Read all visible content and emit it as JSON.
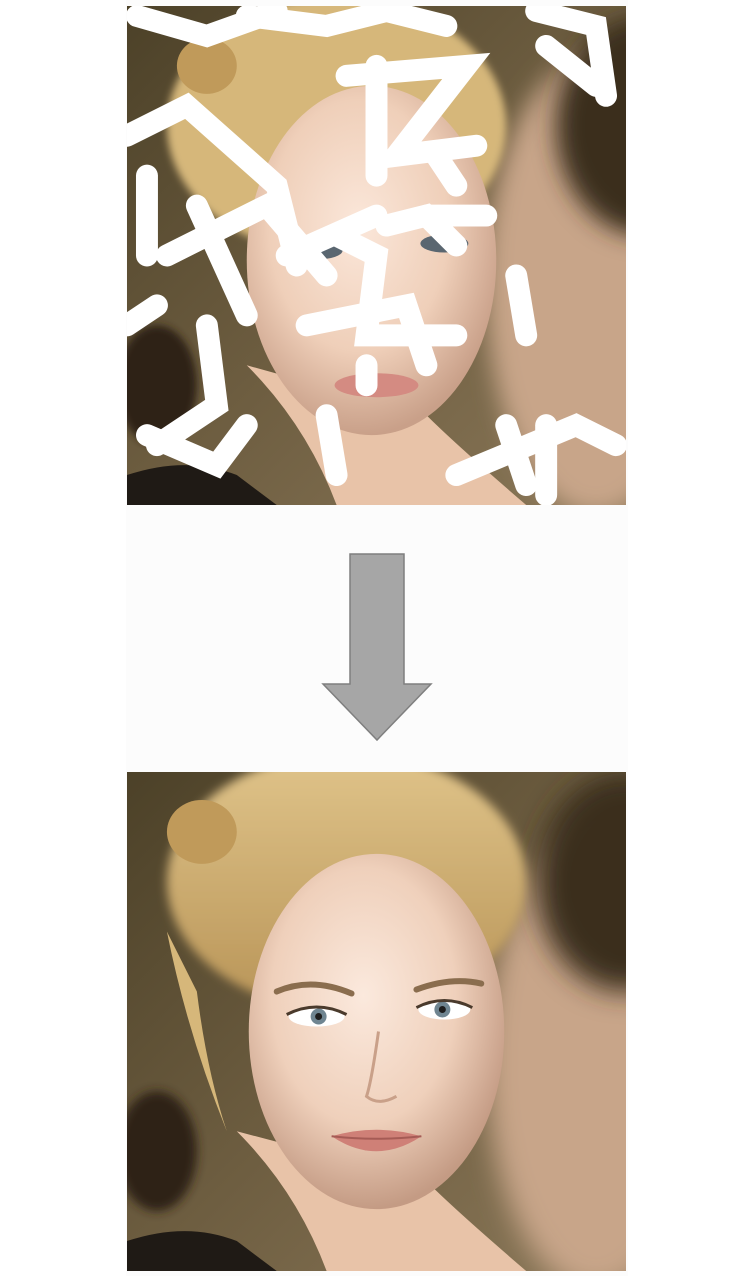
{
  "figure": {
    "input_image": {
      "description_icon": "masked-face-photo",
      "mask_color": "#ffffff"
    },
    "arrow": {
      "icon": "arrow-down-icon",
      "fill_color": "#a6a6a6",
      "stroke_color": "#7f7f7f"
    },
    "output_image": {
      "description_icon": "restored-face-photo"
    },
    "colors": {
      "background": "#ffffff",
      "panel": "#fcfcfc",
      "photo_bg": "#6b5a3c",
      "skin": "#f0d2bd",
      "hair": "#d8b978"
    }
  }
}
